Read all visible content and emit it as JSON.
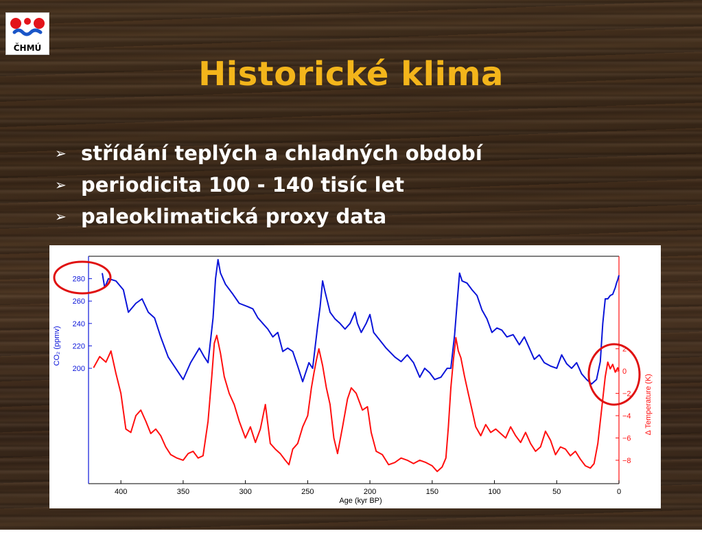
{
  "logo": {
    "text": "ČHMÚ",
    "colors": {
      "red": "#e3141b",
      "blue": "#1a56c8"
    }
  },
  "title": "Historické klima",
  "bullets": [
    {
      "icon": "arrowhead-bullet-icon",
      "text": "střídání teplých a chladných období"
    },
    {
      "icon": "arrowhead-bullet-icon",
      "text": "periodicita 100 - 140 tisíc let"
    },
    {
      "icon": "arrowhead-bullet-icon",
      "text": "paleoklimatická proxy data"
    }
  ],
  "colors": {
    "title": "#f3b51b",
    "co2": "#0a14d9",
    "temperature": "#ff0f0f",
    "highlight_circle": "#e01010"
  },
  "chart_data": {
    "type": "line",
    "xlabel": "Age (kyr BP)",
    "xlim": [
      426,
      0
    ],
    "xticks": [
      400,
      350,
      300,
      250,
      200,
      150,
      100,
      50,
      0
    ],
    "grid": false,
    "left_axis": {
      "label": "CO₂ (ppmv)",
      "ticks": [
        200,
        220,
        240,
        260,
        280
      ],
      "range": [
        97,
        300
      ],
      "color": "#0a14d9"
    },
    "right_axis": {
      "label": "Δ Temperature (K)",
      "ticks": [
        2,
        0,
        -2,
        -4,
        -6,
        -8
      ],
      "tick_labels": [
        "2",
        "0",
        "−2",
        "−4",
        "−6",
        "−8"
      ],
      "range": [
        -10.1,
        10.3
      ],
      "color": "#ff0f0f"
    },
    "annotations": [
      {
        "type": "circle",
        "target": "CO₂ axis 280 tick",
        "color": "#e01010"
      },
      {
        "type": "circle",
        "target": "recent temperature near 0 K",
        "color": "#e01010"
      }
    ],
    "series": [
      {
        "axis": "left",
        "color": "#0a14d9",
        "points": [
          [
            415,
            285
          ],
          [
            413,
            272
          ],
          [
            410,
            280
          ],
          [
            404,
            278
          ],
          [
            398,
            270
          ],
          [
            394,
            250
          ],
          [
            388,
            258
          ],
          [
            383,
            262
          ],
          [
            378,
            250
          ],
          [
            373,
            245
          ],
          [
            368,
            228
          ],
          [
            362,
            210
          ],
          [
            356,
            200
          ],
          [
            350,
            190
          ],
          [
            344,
            205
          ],
          [
            337,
            218
          ],
          [
            333,
            210
          ],
          [
            330,
            205
          ],
          [
            326,
            245
          ],
          [
            324,
            280
          ],
          [
            322,
            297
          ],
          [
            320,
            285
          ],
          [
            316,
            275
          ],
          [
            310,
            266
          ],
          [
            305,
            258
          ],
          [
            298,
            255
          ],
          [
            294,
            253
          ],
          [
            290,
            245
          ],
          [
            286,
            240
          ],
          [
            282,
            235
          ],
          [
            278,
            228
          ],
          [
            274,
            232
          ],
          [
            270,
            215
          ],
          [
            266,
            218
          ],
          [
            262,
            215
          ],
          [
            258,
            202
          ],
          [
            254,
            188
          ],
          [
            249,
            205
          ],
          [
            246,
            200
          ],
          [
            242,
            238
          ],
          [
            240,
            255
          ],
          [
            238,
            278
          ],
          [
            236,
            268
          ],
          [
            232,
            250
          ],
          [
            228,
            244
          ],
          [
            224,
            240
          ],
          [
            220,
            235
          ],
          [
            216,
            240
          ],
          [
            212,
            250
          ],
          [
            210,
            240
          ],
          [
            207,
            232
          ],
          [
            203,
            240
          ],
          [
            200,
            248
          ],
          [
            197,
            232
          ],
          [
            192,
            225
          ],
          [
            187,
            218
          ],
          [
            180,
            210
          ],
          [
            175,
            206
          ],
          [
            170,
            212
          ],
          [
            165,
            205
          ],
          [
            160,
            192
          ],
          [
            156,
            200
          ],
          [
            152,
            196
          ],
          [
            148,
            190
          ],
          [
            143,
            192
          ],
          [
            138,
            200
          ],
          [
            135,
            200
          ],
          [
            132,
            230
          ],
          [
            130,
            258
          ],
          [
            128,
            285
          ],
          [
            126,
            278
          ],
          [
            122,
            276
          ],
          [
            118,
            270
          ],
          [
            114,
            265
          ],
          [
            110,
            252
          ],
          [
            106,
            244
          ],
          [
            102,
            232
          ],
          [
            98,
            236
          ],
          [
            94,
            234
          ],
          [
            90,
            228
          ],
          [
            85,
            230
          ],
          [
            80,
            221
          ],
          [
            76,
            228
          ],
          [
            72,
            218
          ],
          [
            68,
            208
          ],
          [
            64,
            212
          ],
          [
            60,
            205
          ],
          [
            55,
            202
          ],
          [
            50,
            200
          ],
          [
            46,
            212
          ],
          [
            42,
            204
          ],
          [
            38,
            200
          ],
          [
            34,
            205
          ],
          [
            30,
            195
          ],
          [
            26,
            190
          ],
          [
            22,
            186
          ],
          [
            18,
            190
          ],
          [
            15,
            206
          ],
          [
            13,
            240
          ],
          [
            11,
            262
          ],
          [
            9,
            262
          ],
          [
            7,
            265
          ],
          [
            5,
            266
          ],
          [
            3,
            272
          ],
          [
            2,
            276
          ],
          [
            1,
            279
          ],
          [
            0,
            283
          ]
        ]
      },
      {
        "axis": "right",
        "color": "#ff0f0f",
        "points": [
          [
            422,
            0.3
          ],
          [
            417,
            1.3
          ],
          [
            412,
            0.8
          ],
          [
            408,
            1.8
          ],
          [
            404,
            -0.2
          ],
          [
            400,
            -2.0
          ],
          [
            396,
            -5.2
          ],
          [
            392,
            -5.5
          ],
          [
            388,
            -4.0
          ],
          [
            384,
            -3.5
          ],
          [
            380,
            -4.5
          ],
          [
            376,
            -5.6
          ],
          [
            372,
            -5.2
          ],
          [
            368,
            -5.8
          ],
          [
            364,
            -6.8
          ],
          [
            360,
            -7.5
          ],
          [
            355,
            -7.8
          ],
          [
            350,
            -8.0
          ],
          [
            346,
            -7.4
          ],
          [
            342,
            -7.2
          ],
          [
            338,
            -7.8
          ],
          [
            334,
            -7.6
          ],
          [
            330,
            -4.5
          ],
          [
            327,
            -0.5
          ],
          [
            325,
            2.5
          ],
          [
            323,
            3.2
          ],
          [
            320,
            1.6
          ],
          [
            317,
            -0.5
          ],
          [
            313,
            -2.0
          ],
          [
            309,
            -3.0
          ],
          [
            305,
            -4.5
          ],
          [
            300,
            -6.0
          ],
          [
            296,
            -5.0
          ],
          [
            292,
            -6.4
          ],
          [
            288,
            -5.2
          ],
          [
            284,
            -3.0
          ],
          [
            280,
            -6.5
          ],
          [
            276,
            -7.0
          ],
          [
            272,
            -7.4
          ],
          [
            268,
            -8.0
          ],
          [
            265,
            -8.4
          ],
          [
            262,
            -7.0
          ],
          [
            258,
            -6.5
          ],
          [
            254,
            -5.0
          ],
          [
            250,
            -4.0
          ],
          [
            247,
            -1.5
          ],
          [
            245,
            -0.2
          ],
          [
            243,
            1.0
          ],
          [
            241,
            2.0
          ],
          [
            238,
            0.5
          ],
          [
            235,
            -1.5
          ],
          [
            232,
            -3.0
          ],
          [
            229,
            -6.0
          ],
          [
            226,
            -7.4
          ],
          [
            222,
            -5.0
          ],
          [
            218,
            -2.5
          ],
          [
            215,
            -1.5
          ],
          [
            211,
            -2.0
          ],
          [
            206,
            -3.5
          ],
          [
            202,
            -3.2
          ],
          [
            199,
            -5.5
          ],
          [
            195,
            -7.2
          ],
          [
            190,
            -7.5
          ],
          [
            185,
            -8.4
          ],
          [
            180,
            -8.2
          ],
          [
            175,
            -7.8
          ],
          [
            170,
            -8.0
          ],
          [
            165,
            -8.3
          ],
          [
            160,
            -8.0
          ],
          [
            155,
            -8.2
          ],
          [
            150,
            -8.5
          ],
          [
            146,
            -9.0
          ],
          [
            142,
            -8.6
          ],
          [
            139,
            -7.8
          ],
          [
            137,
            -5.0
          ],
          [
            135,
            -1.5
          ],
          [
            133,
            1.0
          ],
          [
            131,
            3.0
          ],
          [
            129,
            1.8
          ],
          [
            127,
            1.2
          ],
          [
            124,
            -0.5
          ],
          [
            121,
            -2.0
          ],
          [
            118,
            -3.5
          ],
          [
            115,
            -5.0
          ],
          [
            111,
            -5.8
          ],
          [
            107,
            -4.8
          ],
          [
            103,
            -5.5
          ],
          [
            99,
            -5.2
          ],
          [
            95,
            -5.6
          ],
          [
            91,
            -6.0
          ],
          [
            87,
            -5.0
          ],
          [
            83,
            -5.8
          ],
          [
            79,
            -6.4
          ],
          [
            75,
            -5.5
          ],
          [
            71,
            -6.5
          ],
          [
            67,
            -7.2
          ],
          [
            63,
            -6.8
          ],
          [
            59,
            -5.4
          ],
          [
            55,
            -6.2
          ],
          [
            51,
            -7.5
          ],
          [
            47,
            -6.8
          ],
          [
            43,
            -7.0
          ],
          [
            39,
            -7.6
          ],
          [
            35,
            -7.2
          ],
          [
            31,
            -7.9
          ],
          [
            27,
            -8.5
          ],
          [
            23,
            -8.7
          ],
          [
            20,
            -8.3
          ],
          [
            17,
            -6.5
          ],
          [
            15,
            -4.5
          ],
          [
            13,
            -2.5
          ],
          [
            11,
            -0.5
          ],
          [
            9,
            0.8
          ],
          [
            7,
            0.2
          ],
          [
            5,
            0.6
          ],
          [
            3,
            -0.1
          ],
          [
            1,
            0.3
          ],
          [
            0,
            0.0
          ]
        ]
      }
    ]
  }
}
